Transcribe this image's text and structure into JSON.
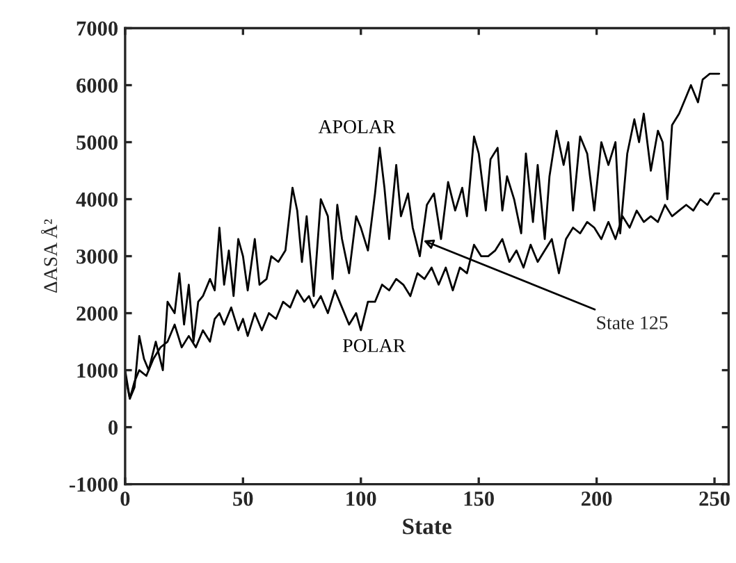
{
  "chart_data": {
    "type": "line",
    "xlabel": "State",
    "ylabel": "ΔASA Å²",
    "xlim": [
      0,
      256
    ],
    "xticks": [
      0,
      50,
      100,
      150,
      200,
      250
    ],
    "ylim": [
      -1000,
      7000
    ],
    "yticks": [
      -1000,
      0,
      1000,
      2000,
      3000,
      4000,
      5000,
      6000,
      7000
    ],
    "grid": false,
    "legend": false,
    "marker": "none",
    "line_style": "solid",
    "annotations": [
      {
        "text": "State 125",
        "x": 125,
        "y": 3300
      }
    ],
    "series": [
      {
        "name": "APOLAR",
        "color": "#000000",
        "x": [
          0,
          2,
          4,
          6,
          8,
          10,
          13,
          16,
          18,
          21,
          23,
          25,
          27,
          29,
          31,
          33,
          36,
          38,
          40,
          42,
          44,
          46,
          48,
          50,
          52,
          55,
          57,
          60,
          62,
          65,
          68,
          71,
          73,
          75,
          77,
          80,
          83,
          86,
          88,
          90,
          92,
          95,
          98,
          100,
          103,
          106,
          108,
          110,
          112,
          115,
          117,
          120,
          122,
          125,
          128,
          131,
          134,
          137,
          140,
          143,
          145,
          148,
          150,
          153,
          155,
          158,
          160,
          162,
          165,
          168,
          170,
          173,
          175,
          178,
          180,
          183,
          186,
          188,
          190,
          193,
          196,
          199,
          202,
          205,
          208,
          210,
          213,
          216,
          218,
          220,
          223,
          226,
          228,
          230,
          232,
          235,
          238,
          240,
          243,
          245,
          248,
          252
        ],
        "values": [
          1000,
          500,
          700,
          1600,
          1200,
          1000,
          1500,
          1000,
          2200,
          2000,
          2700,
          1800,
          2500,
          1500,
          2200,
          2300,
          2600,
          2400,
          3500,
          2500,
          3100,
          2300,
          3300,
          3000,
          2400,
          3300,
          2500,
          2600,
          3000,
          2900,
          3100,
          4200,
          3800,
          2900,
          3700,
          2300,
          4000,
          3700,
          2600,
          3900,
          3300,
          2700,
          3700,
          3500,
          3100,
          4100,
          4900,
          4200,
          3300,
          4600,
          3700,
          4100,
          3500,
          3000,
          3900,
          4100,
          3300,
          4300,
          3800,
          4200,
          3700,
          5100,
          4800,
          3800,
          4700,
          4900,
          3800,
          4400,
          4000,
          3400,
          4800,
          3600,
          4600,
          3300,
          4400,
          5200,
          4600,
          5000,
          3800,
          5100,
          4800,
          3800,
          5000,
          4600,
          5000,
          3400,
          4800,
          5400,
          5000,
          5500,
          4500,
          5200,
          5000,
          4000,
          5300,
          5500,
          5800,
          6000,
          5700,
          6100,
          6200,
          6200
        ]
      },
      {
        "name": "POLAR",
        "color": "#000000",
        "x": [
          0,
          2,
          4,
          6,
          9,
          12,
          15,
          18,
          21,
          24,
          27,
          30,
          33,
          36,
          38,
          40,
          42,
          45,
          48,
          50,
          52,
          55,
          58,
          61,
          64,
          67,
          70,
          73,
          76,
          78,
          80,
          83,
          86,
          89,
          92,
          95,
          98,
          100,
          103,
          106,
          109,
          112,
          115,
          118,
          121,
          124,
          127,
          130,
          133,
          136,
          139,
          142,
          145,
          148,
          151,
          154,
          157,
          160,
          163,
          166,
          169,
          172,
          175,
          178,
          181,
          184,
          187,
          190,
          193,
          196,
          199,
          202,
          205,
          208,
          211,
          214,
          217,
          220,
          223,
          226,
          229,
          232,
          235,
          238,
          241,
          244,
          247,
          250,
          252
        ],
        "values": [
          900,
          500,
          800,
          1000,
          900,
          1200,
          1400,
          1500,
          1800,
          1400,
          1600,
          1400,
          1700,
          1500,
          1900,
          2000,
          1800,
          2100,
          1700,
          1900,
          1600,
          2000,
          1700,
          2000,
          1900,
          2200,
          2100,
          2400,
          2200,
          2300,
          2100,
          2300,
          2000,
          2400,
          2100,
          1800,
          2000,
          1700,
          2200,
          2200,
          2500,
          2400,
          2600,
          2500,
          2300,
          2700,
          2600,
          2800,
          2500,
          2800,
          2400,
          2800,
          2700,
          3200,
          3000,
          3000,
          3100,
          3300,
          2900,
          3100,
          2800,
          3200,
          2900,
          3100,
          3300,
          2700,
          3300,
          3500,
          3400,
          3600,
          3500,
          3300,
          3600,
          3300,
          3700,
          3500,
          3800,
          3600,
          3700,
          3600,
          3900,
          3700,
          3800,
          3900,
          3800,
          4000,
          3900,
          4100,
          4100
        ]
      }
    ]
  }
}
